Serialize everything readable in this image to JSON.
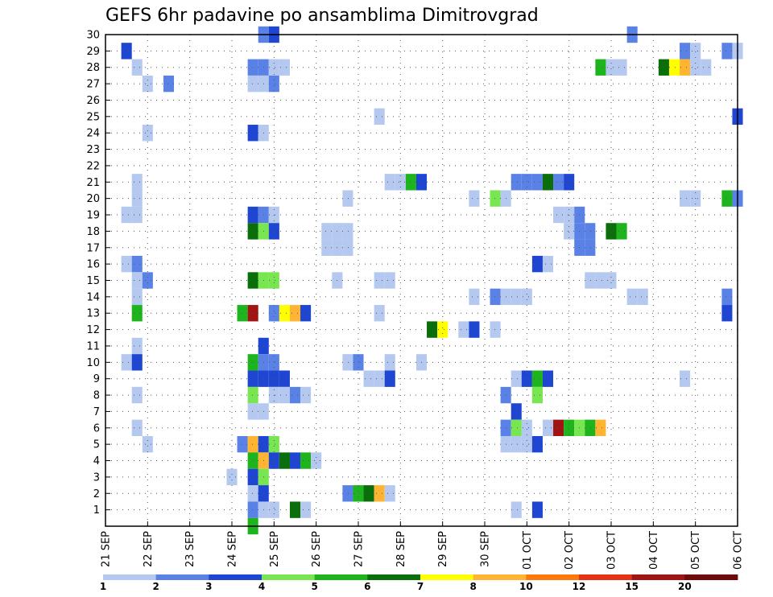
{
  "chart_data": {
    "type": "heatmap",
    "title": "GEFS 6hr padavine po ansamblima Dimitrovgrad",
    "y_labels": [
      "1",
      "2",
      "3",
      "4",
      "5",
      "6",
      "7",
      "8",
      "9",
      "10",
      "11",
      "12",
      "13",
      "14",
      "15",
      "16",
      "17",
      "18",
      "19",
      "20",
      "21",
      "22",
      "23",
      "24",
      "25",
      "26",
      "27",
      "28",
      "29",
      "30"
    ],
    "x_labels": [
      "21 SEP",
      "22 SEP",
      "23 SEP",
      "24 SEP",
      "25 SEP",
      "26 SEP",
      "27 SEP",
      "28 SEP",
      "29 SEP",
      "30 SEP",
      "01 OCT",
      "02 OCT",
      "03 OCT",
      "04 OCT",
      "05 OCT",
      "06 OCT"
    ],
    "x_range": [
      0,
      60
    ],
    "grid": true,
    "legend": {
      "position": "bottom",
      "labels": [
        "1",
        "2",
        "3",
        "4",
        "5",
        "6",
        "7",
        "8",
        "10",
        "12",
        "15",
        "20"
      ],
      "colors": [
        "#b4c8f0",
        "#5a82e6",
        "#1e46d2",
        "#78e650",
        "#1eb41e",
        "#0a6e0a",
        "#ffff00",
        "#ffb432",
        "#ff780a",
        "#e63214",
        "#a01414",
        "#6e0a0a"
      ]
    },
    "cells": [
      [
        30,
        15,
        2
      ],
      [
        30,
        16,
        3
      ],
      [
        30,
        50,
        2
      ],
      [
        29,
        2,
        3
      ],
      [
        29,
        55,
        2
      ],
      [
        29,
        56,
        1
      ],
      [
        29,
        59,
        2
      ],
      [
        29,
        60,
        1
      ],
      [
        28,
        3,
        1
      ],
      [
        28,
        14,
        2
      ],
      [
        28,
        15,
        2
      ],
      [
        28,
        16,
        1
      ],
      [
        28,
        17,
        1
      ],
      [
        28,
        47,
        5
      ],
      [
        28,
        48,
        1
      ],
      [
        28,
        49,
        1
      ],
      [
        28,
        53,
        6
      ],
      [
        28,
        54,
        7
      ],
      [
        28,
        55,
        8
      ],
      [
        28,
        56,
        1
      ],
      [
        28,
        57,
        1
      ],
      [
        27,
        4,
        1
      ],
      [
        27,
        6,
        2
      ],
      [
        27,
        14,
        1
      ],
      [
        27,
        15,
        1
      ],
      [
        27,
        16,
        2
      ],
      [
        25,
        26,
        1
      ],
      [
        25,
        60,
        3
      ],
      [
        24,
        4,
        1
      ],
      [
        24,
        14,
        3
      ],
      [
        24,
        15,
        1
      ],
      [
        21,
        3,
        1
      ],
      [
        21,
        27,
        1
      ],
      [
        21,
        28,
        1
      ],
      [
        21,
        29,
        5
      ],
      [
        21,
        30,
        3
      ],
      [
        21,
        39,
        2
      ],
      [
        21,
        40,
        2
      ],
      [
        21,
        41,
        2
      ],
      [
        21,
        42,
        6
      ],
      [
        21,
        43,
        2
      ],
      [
        21,
        44,
        3
      ],
      [
        20,
        3,
        1
      ],
      [
        20,
        23,
        1
      ],
      [
        20,
        35,
        1
      ],
      [
        20,
        37,
        4
      ],
      [
        20,
        38,
        1
      ],
      [
        20,
        55,
        1
      ],
      [
        20,
        56,
        1
      ],
      [
        20,
        59,
        5
      ],
      [
        20,
        60,
        2
      ],
      [
        19,
        2,
        1
      ],
      [
        19,
        3,
        1
      ],
      [
        19,
        14,
        3
      ],
      [
        19,
        15,
        2
      ],
      [
        19,
        16,
        1
      ],
      [
        19,
        43,
        1
      ],
      [
        19,
        44,
        1
      ],
      [
        19,
        45,
        2
      ],
      [
        18,
        14,
        6
      ],
      [
        18,
        15,
        4
      ],
      [
        18,
        16,
        3
      ],
      [
        18,
        21,
        1
      ],
      [
        18,
        22,
        1
      ],
      [
        18,
        23,
        1
      ],
      [
        18,
        44,
        1
      ],
      [
        18,
        45,
        2
      ],
      [
        18,
        46,
        2
      ],
      [
        18,
        48,
        6
      ],
      [
        18,
        49,
        5
      ],
      [
        17,
        21,
        1
      ],
      [
        17,
        22,
        1
      ],
      [
        17,
        23,
        1
      ],
      [
        17,
        45,
        2
      ],
      [
        17,
        46,
        2
      ],
      [
        16,
        2,
        1
      ],
      [
        16,
        3,
        2
      ],
      [
        16,
        41,
        3
      ],
      [
        16,
        42,
        1
      ],
      [
        15,
        3,
        1
      ],
      [
        15,
        4,
        2
      ],
      [
        15,
        14,
        6
      ],
      [
        15,
        15,
        4
      ],
      [
        15,
        16,
        4
      ],
      [
        15,
        22,
        1
      ],
      [
        15,
        26,
        1
      ],
      [
        15,
        27,
        1
      ],
      [
        15,
        46,
        1
      ],
      [
        15,
        47,
        1
      ],
      [
        15,
        48,
        1
      ],
      [
        14,
        3,
        1
      ],
      [
        14,
        35,
        1
      ],
      [
        14,
        37,
        2
      ],
      [
        14,
        38,
        1
      ],
      [
        14,
        39,
        1
      ],
      [
        14,
        40,
        1
      ],
      [
        14,
        50,
        1
      ],
      [
        14,
        51,
        1
      ],
      [
        14,
        59,
        2
      ],
      [
        13,
        3,
        5
      ],
      [
        13,
        13,
        5
      ],
      [
        13,
        14,
        11
      ],
      [
        13,
        16,
        2
      ],
      [
        13,
        17,
        7
      ],
      [
        13,
        18,
        8
      ],
      [
        13,
        19,
        3
      ],
      [
        13,
        26,
        1
      ],
      [
        13,
        59,
        3
      ],
      [
        12,
        31,
        6
      ],
      [
        12,
        32,
        7
      ],
      [
        12,
        34,
        1
      ],
      [
        12,
        35,
        3
      ],
      [
        12,
        37,
        1
      ],
      [
        11,
        3,
        1
      ],
      [
        11,
        15,
        3
      ],
      [
        10,
        2,
        1
      ],
      [
        10,
        3,
        3
      ],
      [
        10,
        14,
        5
      ],
      [
        10,
        15,
        2
      ],
      [
        10,
        16,
        2
      ],
      [
        10,
        23,
        1
      ],
      [
        10,
        24,
        2
      ],
      [
        10,
        27,
        1
      ],
      [
        10,
        30,
        1
      ],
      [
        9,
        14,
        3
      ],
      [
        9,
        15,
        3
      ],
      [
        9,
        16,
        3
      ],
      [
        9,
        17,
        3
      ],
      [
        9,
        25,
        1
      ],
      [
        9,
        26,
        1
      ],
      [
        9,
        27,
        3
      ],
      [
        9,
        39,
        1
      ],
      [
        9,
        40,
        3
      ],
      [
        9,
        41,
        5
      ],
      [
        9,
        42,
        3
      ],
      [
        9,
        55,
        1
      ],
      [
        8,
        3,
        1
      ],
      [
        8,
        14,
        4
      ],
      [
        8,
        16,
        1
      ],
      [
        8,
        17,
        1
      ],
      [
        8,
        18,
        2
      ],
      [
        8,
        19,
        1
      ],
      [
        8,
        38,
        2
      ],
      [
        8,
        41,
        4
      ],
      [
        7,
        14,
        1
      ],
      [
        7,
        15,
        1
      ],
      [
        7,
        39,
        3
      ],
      [
        6,
        3,
        1
      ],
      [
        6,
        38,
        2
      ],
      [
        6,
        39,
        4
      ],
      [
        6,
        40,
        1
      ],
      [
        6,
        42,
        1
      ],
      [
        6,
        43,
        11
      ],
      [
        6,
        44,
        5
      ],
      [
        6,
        45,
        4
      ],
      [
        6,
        46,
        5
      ],
      [
        6,
        47,
        8
      ],
      [
        5,
        4,
        1
      ],
      [
        5,
        13,
        2
      ],
      [
        5,
        14,
        8
      ],
      [
        5,
        15,
        3
      ],
      [
        5,
        16,
        4
      ],
      [
        5,
        38,
        1
      ],
      [
        5,
        39,
        1
      ],
      [
        5,
        40,
        1
      ],
      [
        5,
        41,
        3
      ],
      [
        4,
        14,
        5
      ],
      [
        4,
        15,
        8
      ],
      [
        4,
        16,
        3
      ],
      [
        4,
        17,
        6
      ],
      [
        4,
        18,
        3
      ],
      [
        4,
        19,
        5
      ],
      [
        4,
        20,
        1
      ],
      [
        3,
        12,
        1
      ],
      [
        3,
        14,
        3
      ],
      [
        3,
        15,
        4
      ],
      [
        2,
        14,
        1
      ],
      [
        2,
        15,
        3
      ],
      [
        2,
        23,
        2
      ],
      [
        2,
        24,
        5
      ],
      [
        2,
        25,
        6
      ],
      [
        2,
        26,
        8
      ],
      [
        2,
        27,
        1
      ],
      [
        1,
        14,
        2
      ],
      [
        1,
        15,
        1
      ],
      [
        1,
        16,
        1
      ],
      [
        1,
        18,
        6
      ],
      [
        1,
        19,
        1
      ],
      [
        1,
        39,
        1
      ],
      [
        1,
        41,
        3
      ],
      [
        0,
        14,
        5
      ]
    ]
  }
}
